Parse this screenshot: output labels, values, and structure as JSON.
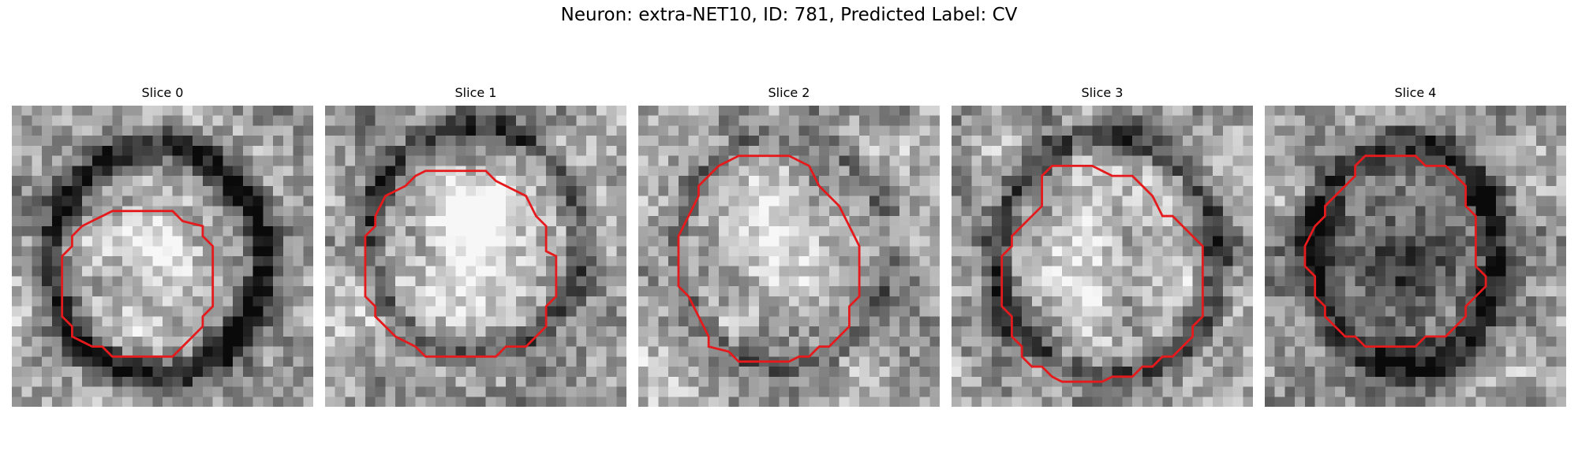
{
  "figure": {
    "title": "Neuron: extra-NET10, ID: 781, Predicted Label: CV"
  },
  "slices": [
    {
      "title": "Slice 0",
      "image": "grayscale-microscopy-patch",
      "membrane": "dark-ring",
      "contour_color": "#e41a1c"
    },
    {
      "title": "Slice 1",
      "image": "grayscale-microscopy-patch",
      "membrane": "dark-ring",
      "contour_color": "#e41a1c"
    },
    {
      "title": "Slice 2",
      "image": "grayscale-microscopy-patch",
      "membrane": "faint-ring",
      "contour_color": "#e41a1c"
    },
    {
      "title": "Slice 3",
      "image": "grayscale-microscopy-patch",
      "membrane": "dark-ring",
      "contour_color": "#e41a1c"
    },
    {
      "title": "Slice 4",
      "image": "grayscale-microscopy-patch",
      "membrane": "dark-filled",
      "contour_color": "#e41a1c"
    }
  ]
}
